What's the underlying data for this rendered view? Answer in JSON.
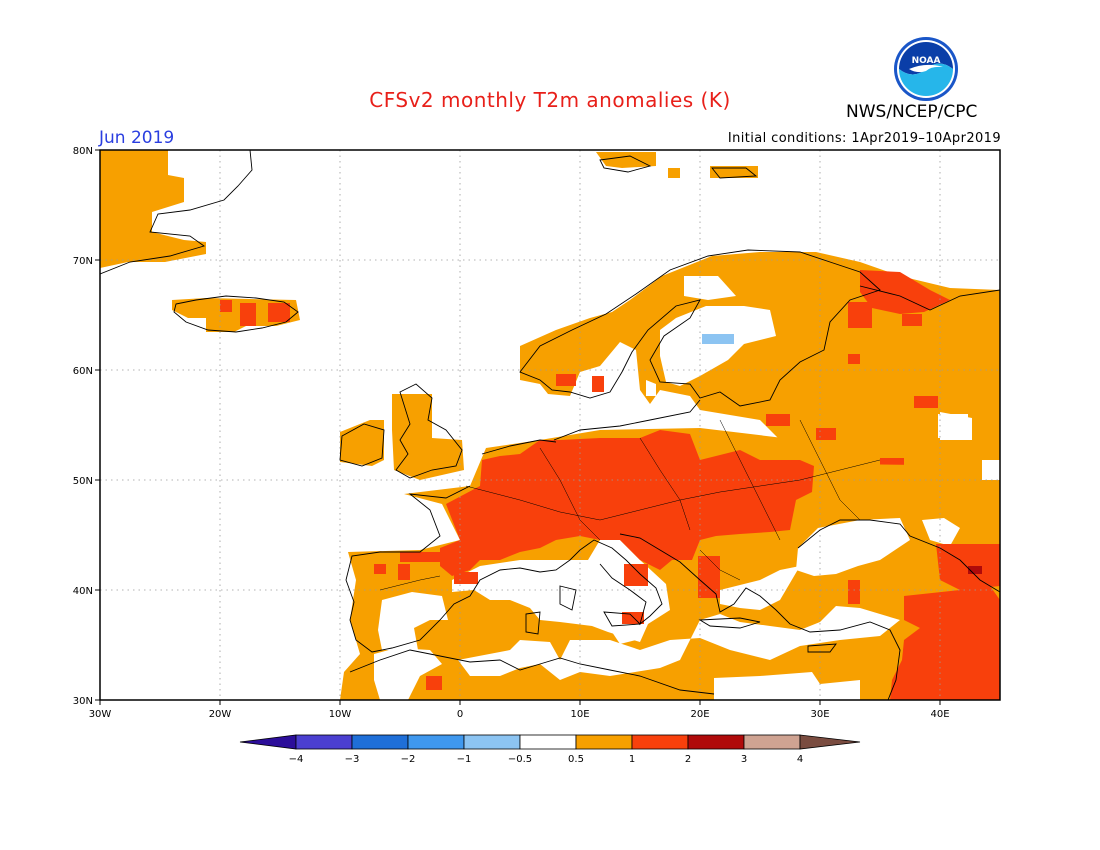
{
  "header": {
    "title": "CFSv2 monthly T2m anomalies (K)",
    "org": "NWS/NCEP/CPC",
    "month": "Jun 2019",
    "initial_conditions": "Initial conditions: 1Apr2019–10Apr2019"
  },
  "logo": {
    "text": "NOAA",
    "icon": "noaa-logo-icon"
  },
  "map": {
    "lon_range": [
      -30,
      45
    ],
    "lat_range": [
      30,
      80
    ],
    "lon_ticks": [
      {
        "value": -30,
        "label": "30W"
      },
      {
        "value": -20,
        "label": "20W"
      },
      {
        "value": -10,
        "label": "10W"
      },
      {
        "value": 0,
        "label": "0"
      },
      {
        "value": 10,
        "label": "10E"
      },
      {
        "value": 20,
        "label": "20E"
      },
      {
        "value": 30,
        "label": "30E"
      },
      {
        "value": 40,
        "label": "40E"
      }
    ],
    "lat_ticks": [
      {
        "value": 30,
        "label": "30N"
      },
      {
        "value": 40,
        "label": "40N"
      },
      {
        "value": 50,
        "label": "50N"
      },
      {
        "value": 60,
        "label": "60N"
      },
      {
        "value": 70,
        "label": "70N"
      },
      {
        "value": 80,
        "label": "80N"
      }
    ],
    "grid": "dotted"
  },
  "colorbar": {
    "colors": [
      "#2c0e9a",
      "#4b3fd0",
      "#1f6fd8",
      "#3f98ee",
      "#8cc4f2",
      "#ffffff",
      "#f7a000",
      "#f8400c",
      "#b00a0a",
      "#cfa392",
      "#7a4c40"
    ],
    "labels": [
      "−4",
      "−3",
      "−2",
      "−1",
      "−0.5",
      "0.5",
      "1",
      "2",
      "3",
      "4"
    ]
  }
}
